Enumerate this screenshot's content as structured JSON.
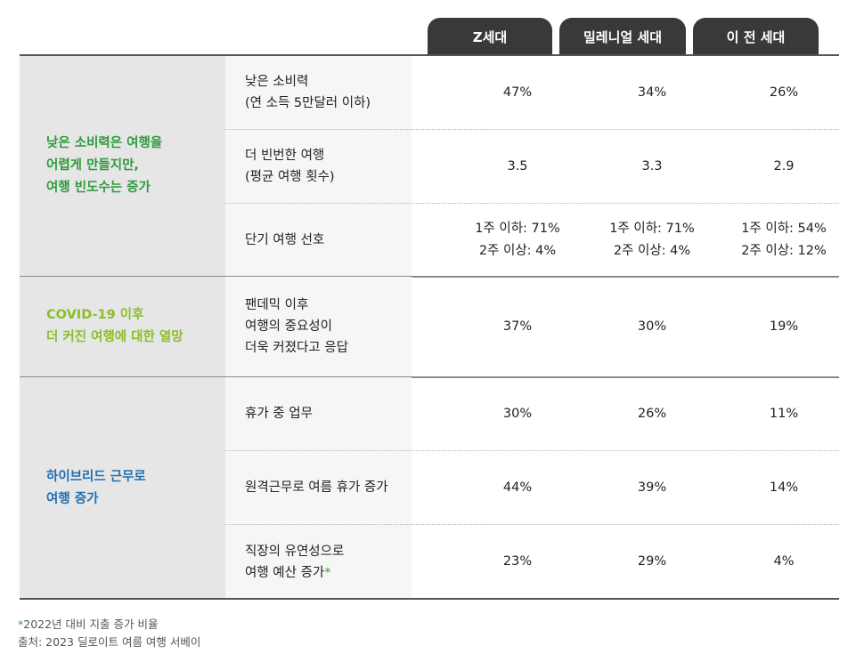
{
  "headers": [
    "Z세대",
    "밀레니얼 세대",
    "이 전 세대"
  ],
  "groups": [
    {
      "category": "낮은 소비력은 여행을\n어렵게 만들지만,\n여행 빈도수는 증가",
      "color": "#2e9b3a",
      "rows": [
        {
          "label": "낮은 소비력\n(연 소득 5만달러 이하)",
          "values": [
            "47%",
            "34%",
            "26%"
          ]
        },
        {
          "label": "더 빈번한 여행\n(평균 여행 횟수)",
          "values": [
            "3.5",
            "3.3",
            "2.9"
          ]
        },
        {
          "label": "단기 여행 선호",
          "values": [
            "1주 이하: 71%\n2주 이상: 4%",
            "1주 이하: 71%\n2주 이상: 4%",
            "1주 이하: 54%\n2주 이상: 12%"
          ]
        }
      ]
    },
    {
      "category": "COVID-19 이후\n더 커진 여행에 대한 열망",
      "color": "#8cbd2a",
      "rows": [
        {
          "label": "팬데믹 이후\n여행의 중요성이\n더욱 커졌다고 응답",
          "values": [
            "37%",
            "30%",
            "19%"
          ]
        }
      ]
    },
    {
      "category": "하이브리드 근무로\n여행 증가",
      "color": "#1f6fb2",
      "rows": [
        {
          "label": "휴가 중 업무",
          "values": [
            "30%",
            "26%",
            "11%"
          ]
        },
        {
          "label": "원격근무로 여름 휴가 증가",
          "values": [
            "44%",
            "39%",
            "14%"
          ]
        },
        {
          "label": "직장의 유연성으로\n여행 예산 증가",
          "label_star": "*",
          "values": [
            "23%",
            "29%",
            "4%"
          ]
        }
      ]
    }
  ],
  "footnote": {
    "star": "*",
    "text": "2022년 대비 지출 증가 비율"
  },
  "source": "출처: 2023 딜로이트 여름 여행 서베이"
}
